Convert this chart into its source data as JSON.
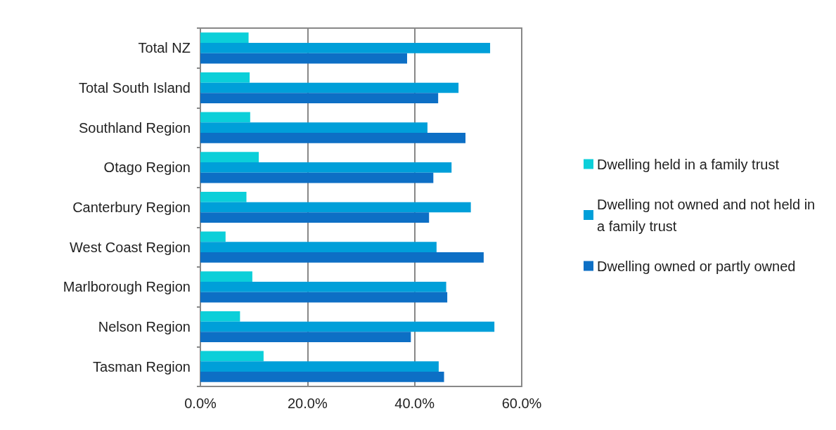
{
  "chart_data": {
    "type": "bar",
    "orientation": "horizontal",
    "categories": [
      "Total NZ",
      "Total South Island",
      "Southland Region",
      "Otago Region",
      "Canterbury Region",
      "West Coast Region",
      "Marlborough Region",
      "Nelson Region",
      "Tasman Region"
    ],
    "series": [
      {
        "name": "Dwelling held in a family trust",
        "color": "#0ccfd9",
        "values": [
          9.0,
          9.2,
          9.3,
          10.9,
          8.6,
          4.7,
          9.7,
          7.4,
          11.8
        ]
      },
      {
        "name": "Dwelling not owned and not held in a family trust",
        "color": "#009fd9",
        "values": [
          54.1,
          48.2,
          42.4,
          46.9,
          50.5,
          44.1,
          45.9,
          54.9,
          44.5
        ]
      },
      {
        "name": "Dwelling owned or partly owned",
        "color": "#0d6fc5",
        "values": [
          38.6,
          44.4,
          49.5,
          43.5,
          42.7,
          52.9,
          46.1,
          39.3,
          45.5
        ]
      }
    ],
    "xlim": [
      0,
      60
    ],
    "xticks": [
      {
        "value": 0,
        "label": "0.0%"
      },
      {
        "value": 20,
        "label": "20.0%"
      },
      {
        "value": 40,
        "label": "40.0%"
      },
      {
        "value": 60,
        "label": "60.0%"
      }
    ],
    "grid": "x",
    "legend": "right"
  }
}
